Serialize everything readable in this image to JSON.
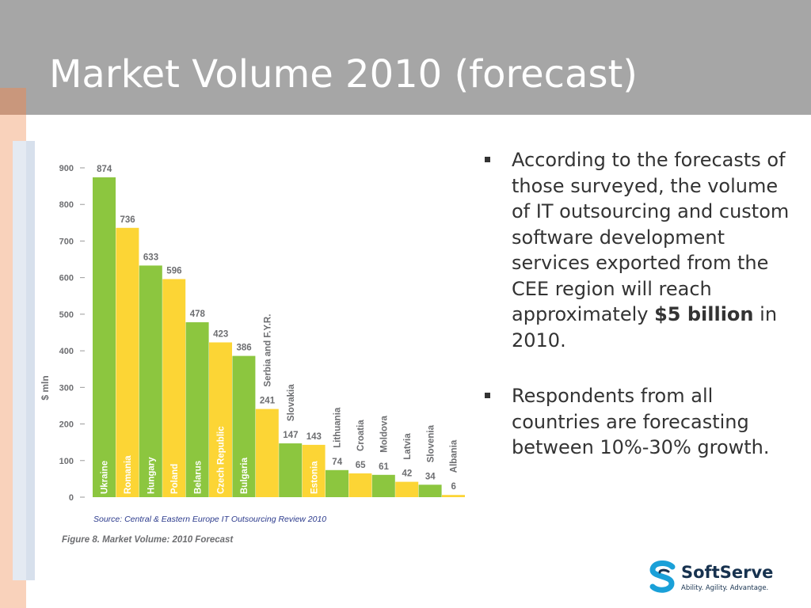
{
  "slide": {
    "title": "Market Volume 2010 (forecast)"
  },
  "colors": {
    "title_bar": "#a6a6a6",
    "green_bar": "#8cc63f",
    "yellow_bar": "#fcd535",
    "left_strip": "#f9d2bb",
    "accent_block": "#c9977c"
  },
  "bullets": {
    "item1_before": "According to the forecasts of those surveyed, the volume of IT outsourcing and custom software development services exported from the CEE region will reach approximately ",
    "item1_bold": "$5 billion",
    "item1_after": " in 2010.",
    "item2": "Respondents from all countries are forecasting between 10%-30% growth."
  },
  "logo": {
    "name": "SoftServe",
    "tagline": "Ability. Agility. Advantage.",
    "icon": "softserve-s-icon"
  },
  "chart_data": {
    "type": "bar",
    "ylabel": "$ mln",
    "ylim": [
      0,
      900
    ],
    "yticks": [
      "900",
      "800",
      "700",
      "600",
      "500",
      "400",
      "300",
      "200",
      "100",
      "0"
    ],
    "categories": [
      "Ukraine",
      "Romania",
      "Hungary",
      "Poland",
      "Belarus",
      "Czech Republic",
      "Bulgaria",
      "Serbia and F.Y.R.",
      "Slovakia",
      "Estonia",
      "Lithuania",
      "Croatia",
      "Moldova",
      "Latvia",
      "Slovenia",
      "Albania"
    ],
    "values": [
      874,
      736,
      633,
      596,
      478,
      423,
      386,
      241,
      147,
      143,
      74,
      65,
      61,
      42,
      34,
      6
    ],
    "value_labels": [
      "874",
      "736",
      "633",
      "596",
      "478",
      "423",
      "386",
      "241",
      "147",
      "143",
      "74",
      "65",
      "61",
      "42",
      "34",
      "6"
    ],
    "bar_colors": [
      "green",
      "yellow",
      "green",
      "yellow",
      "green",
      "yellow",
      "green",
      "yellow",
      "green",
      "yellow",
      "green",
      "yellow",
      "green",
      "yellow",
      "green",
      "yellow"
    ],
    "source": "Source: Central & Eastern Europe IT Outsourcing Review 2010",
    "caption": "Figure 8. Market Volume: 2010 Forecast",
    "grid": false
  }
}
